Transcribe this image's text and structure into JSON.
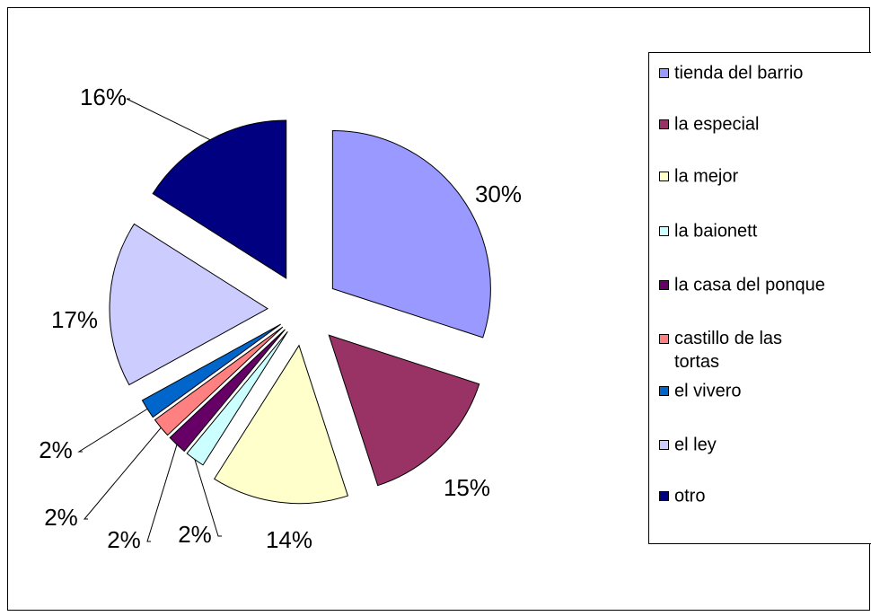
{
  "chart_data": {
    "type": "pie",
    "categories": [
      "tienda del barrio",
      "la especial",
      "la mejor",
      "la baionett",
      "la casa del ponque",
      "castillo de las tortas",
      "el vivero",
      "el ley",
      "otro"
    ],
    "values": [
      30,
      15,
      14,
      2,
      2,
      2,
      2,
      17,
      16
    ],
    "value_labels": [
      "30%",
      "15%",
      "14%",
      "2%",
      "2%",
      "2%",
      "2%",
      "17%",
      "16%"
    ],
    "colors": [
      "#9999ff",
      "#993366",
      "#ffffcc",
      "#ccffff",
      "#660066",
      "#ff8080",
      "#0066cc",
      "#ccccff",
      "#000080"
    ],
    "legend": "right"
  }
}
